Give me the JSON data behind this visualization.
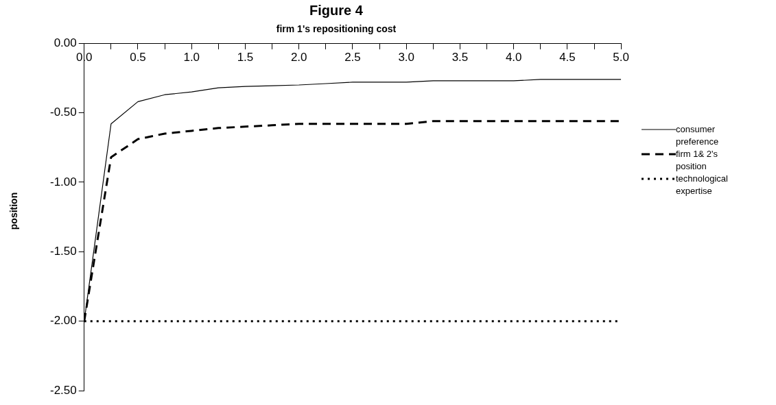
{
  "chart_data": {
    "type": "line",
    "title": "Figure 4",
    "subtitle": "firm 1's repositioning cost",
    "ylabel": "position",
    "x": [
      0,
      0.25,
      0.5,
      0.75,
      1.0,
      1.25,
      1.5,
      1.75,
      2.0,
      2.25,
      2.5,
      2.75,
      3.0,
      3.25,
      3.5,
      3.75,
      4.0,
      4.25,
      4.5,
      4.75,
      5.0
    ],
    "series": [
      {
        "name": "consumer preference",
        "color": "#000000",
        "line_style": "solid",
        "values": [
          -2.0,
          -0.58,
          -0.42,
          -0.37,
          -0.35,
          -0.32,
          -0.31,
          -0.305,
          -0.3,
          -0.29,
          -0.28,
          -0.28,
          -0.28,
          -0.27,
          -0.27,
          -0.27,
          -0.27,
          -0.26,
          -0.26,
          -0.26,
          -0.26
        ]
      },
      {
        "name": "firm 1& 2's position",
        "color": "#000000",
        "line_style": "dashed",
        "values": [
          -2.0,
          -0.82,
          -0.69,
          -0.65,
          -0.63,
          -0.61,
          -0.6,
          -0.59,
          -0.58,
          -0.58,
          -0.58,
          -0.58,
          -0.58,
          -0.56,
          -0.56,
          -0.56,
          -0.56,
          -0.56,
          -0.56,
          -0.56,
          -0.56
        ]
      },
      {
        "name": "technological expertise",
        "color": "#000000",
        "line_style": "dotted",
        "values": [
          -2.0,
          -2.0,
          -2.0,
          -2.0,
          -2.0,
          -2.0,
          -2.0,
          -2.0,
          -2.0,
          -2.0,
          -2.0,
          -2.0,
          -2.0,
          -2.0,
          -2.0,
          -2.0,
          -2.0,
          -2.0,
          -2.0,
          -2.0,
          -2.0
        ]
      }
    ],
    "xlim": [
      0,
      5
    ],
    "xticks": [
      {
        "value": 0,
        "label": "0.0"
      },
      {
        "value": 0.25,
        "label": null
      },
      {
        "value": 0.5,
        "label": "0.5"
      },
      {
        "value": 0.75,
        "label": null
      },
      {
        "value": 1,
        "label": "1.0"
      },
      {
        "value": 1.25,
        "label": null
      },
      {
        "value": 1.5,
        "label": "1.5"
      },
      {
        "value": 1.75,
        "label": null
      },
      {
        "value": 2,
        "label": "2.0"
      },
      {
        "value": 2.25,
        "label": null
      },
      {
        "value": 2.5,
        "label": "2.5"
      },
      {
        "value": 2.75,
        "label": null
      },
      {
        "value": 3,
        "label": "3.0"
      },
      {
        "value": 3.25,
        "label": null
      },
      {
        "value": 3.5,
        "label": "3.5"
      },
      {
        "value": 3.75,
        "label": null
      },
      {
        "value": 4,
        "label": "4.0"
      },
      {
        "value": 4.25,
        "label": null
      },
      {
        "value": 4.5,
        "label": "4.5"
      },
      {
        "value": 4.75,
        "label": null
      },
      {
        "value": 5,
        "label": "5.0"
      }
    ],
    "ylim": [
      -2.5,
      0
    ],
    "yticks": [
      {
        "value": -2.5,
        "label": "-2.50"
      },
      {
        "value": -2,
        "label": "-2.00"
      },
      {
        "value": -1.5,
        "label": "-1.50"
      },
      {
        "value": -1,
        "label": "-1.00"
      },
      {
        "value": -0.5,
        "label": "-0.50"
      },
      {
        "value": 0,
        "label": "0.00"
      }
    ],
    "grid": false,
    "legend": "right",
    "marker": "none"
  }
}
